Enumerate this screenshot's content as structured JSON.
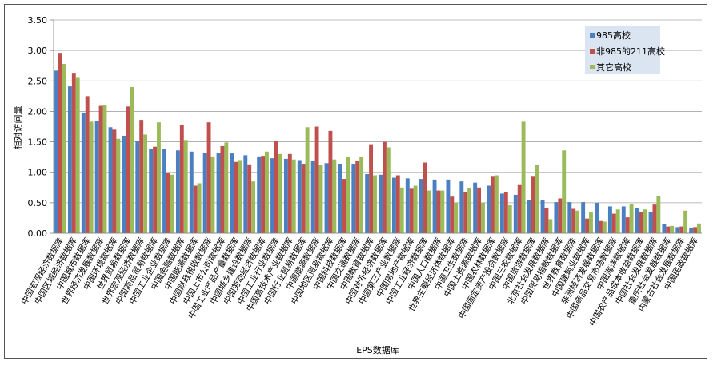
{
  "chart_data": {
    "type": "bar",
    "xlabel": "EPS数据库",
    "ylabel": "相对访问量",
    "ylim": [
      0,
      3.5
    ],
    "yticks": [
      "0.00",
      "0.50",
      "1.00",
      "1.50",
      "2.00",
      "2.50",
      "3.00",
      "3.50"
    ],
    "grid": true,
    "legend_position": "top-right",
    "categories": [
      "中国宏观经济数据库",
      "中国区域经济数据库",
      "中国城市数据库",
      "世界经济发展数据库",
      "中国环境数据库",
      "世界贸易数据库",
      "世界宏观经济数据库",
      "中国商品贸易数据库",
      "中国工业企业数据库",
      "中国金融数据库",
      "中国能源数据库",
      "中国财政税收数据库",
      "中国上市公司数据库",
      "中国工业产品产量数据库",
      "中国城乡建设数据库",
      "中国劳动经济数据库",
      "中国工业行业数据库",
      "中国高技术产业数据库",
      "中国行业贸易数据库",
      "中国能源数据库",
      "中国地区贸易数据库",
      "中国科技数据库",
      "中国交通数据库",
      "中国教育数据库",
      "中国对外经济数据库",
      "中国第三产业数据库",
      "中国房地产数据库",
      "中国工业经济数据库",
      "中国人口数据库",
      "世界主要经济体数据库",
      "中国卫生数据库",
      "中国土资源数据库",
      "中国农林数据库",
      "中国固定资产投资数据库",
      "中国三农数据库",
      "中国旅游数据库",
      "北京社会发展数据库",
      "中国贸易指数数据库",
      "世界教育数据库",
      "中国建筑业数据库",
      "非洲经济发展数据库",
      "中国商品交易市场数据库",
      "中国海洋数据库",
      "中国农产品成本收益数据库",
      "中国社会发展数据库",
      "重庆社会发展数据库",
      "内蒙古社会发展数据库",
      "中国民政数据库"
    ],
    "series": [
      {
        "name": "985高校",
        "color": "#4a7fc1",
        "values": [
          2.67,
          2.41,
          1.98,
          1.84,
          1.74,
          1.6,
          1.51,
          1.39,
          1.38,
          1.36,
          1.34,
          1.32,
          1.31,
          1.31,
          1.28,
          1.26,
          1.23,
          1.22,
          1.2,
          1.18,
          1.15,
          1.14,
          1.14,
          0.97,
          0.96,
          0.91,
          0.9,
          0.89,
          0.88,
          0.88,
          0.85,
          0.83,
          0.78,
          0.65,
          0.63,
          0.55,
          0.54,
          0.51,
          0.51,
          0.51,
          0.5,
          0.44,
          0.44,
          0.41,
          0.35,
          0.15,
          0.1,
          0.09
        ]
      },
      {
        "name": "非985的211高校",
        "color": "#c0504d",
        "values": [
          2.96,
          2.62,
          2.25,
          2.09,
          1.7,
          2.08,
          1.86,
          1.42,
          0.99,
          1.77,
          0.78,
          1.82,
          1.43,
          1.17,
          1.13,
          1.27,
          1.52,
          1.3,
          1.14,
          1.75,
          1.68,
          0.89,
          1.18,
          1.46,
          1.5,
          0.95,
          0.73,
          1.16,
          0.7,
          0.6,
          0.68,
          0.75,
          0.94,
          0.68,
          0.79,
          0.94,
          0.42,
          0.57,
          0.4,
          0.24,
          0.2,
          0.32,
          0.26,
          0.35,
          0.47,
          0.11,
          0.11,
          0.1
        ]
      },
      {
        "name": "其它高校",
        "color": "#9bbb59",
        "values": [
          2.78,
          2.55,
          1.83,
          2.11,
          1.55,
          2.4,
          1.62,
          1.82,
          0.96,
          1.53,
          0.82,
          1.26,
          1.49,
          1.2,
          0.85,
          1.34,
          1.3,
          1.21,
          1.74,
          1.12,
          1.21,
          1.25,
          1.25,
          0.95,
          1.41,
          0.75,
          0.78,
          0.7,
          0.7,
          0.5,
          0.74,
          0.5,
          0.95,
          0.46,
          1.83,
          1.12,
          0.23,
          1.36,
          0.37,
          0.34,
          0.19,
          0.39,
          0.48,
          0.39,
          0.61,
          0.12,
          0.37,
          0.16
        ]
      }
    ]
  }
}
